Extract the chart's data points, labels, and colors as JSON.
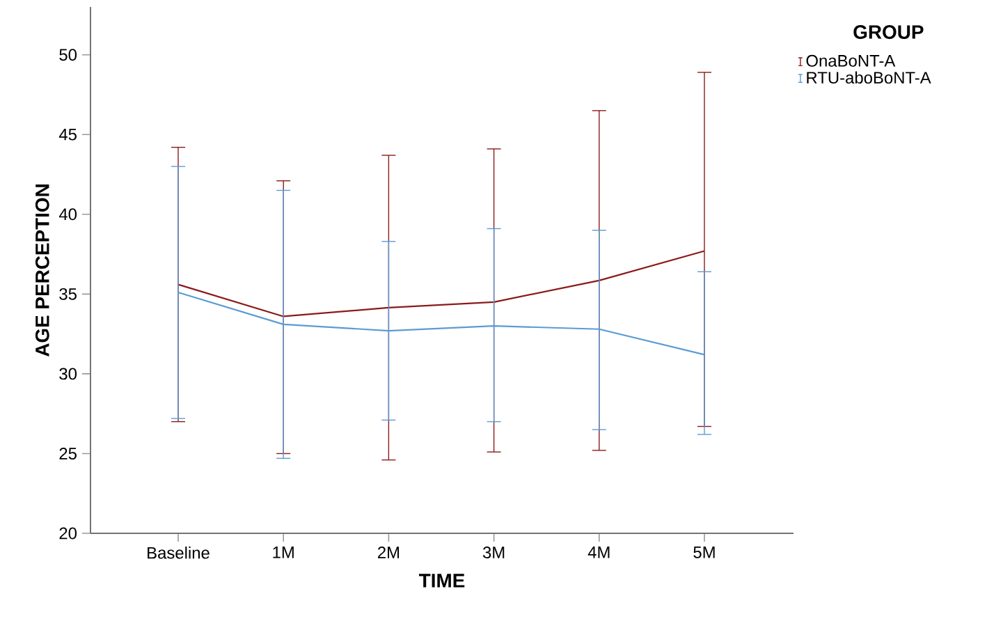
{
  "chart_data": {
    "type": "line",
    "xlabel": "TIME",
    "ylabel": "AGE PERCEPTION",
    "legend_title": "GROUP",
    "legend": "top right",
    "grid": false,
    "marker": "none",
    "line_style": "solid",
    "categories": [
      "Baseline",
      "1M",
      "2M",
      "3M",
      "4M",
      "5M"
    ],
    "ylim": [
      20,
      53
    ],
    "yticks": [
      20,
      25,
      30,
      35,
      40,
      45,
      50
    ],
    "series": [
      {
        "name": "OnaBoNT-A",
        "color": "#8b1a1a",
        "values": [
          35.6,
          33.6,
          34.15,
          34.5,
          35.85,
          37.7
        ],
        "errors": [
          [
            27.0,
            44.2
          ],
          [
            25.0,
            42.1
          ],
          [
            24.6,
            43.7
          ],
          [
            25.1,
            44.1
          ],
          [
            25.2,
            46.5
          ],
          [
            26.7,
            48.9
          ]
        ]
      },
      {
        "name": "RTU-aboBoNT-A",
        "color": "#5b9bd5",
        "values": [
          35.1,
          33.1,
          32.7,
          33.0,
          32.8,
          31.2
        ],
        "errors": [
          [
            27.2,
            43.0
          ],
          [
            24.7,
            41.5
          ],
          [
            27.1,
            38.3
          ],
          [
            27.0,
            39.1
          ],
          [
            26.5,
            39.0
          ],
          [
            26.2,
            36.4
          ]
        ]
      }
    ]
  }
}
